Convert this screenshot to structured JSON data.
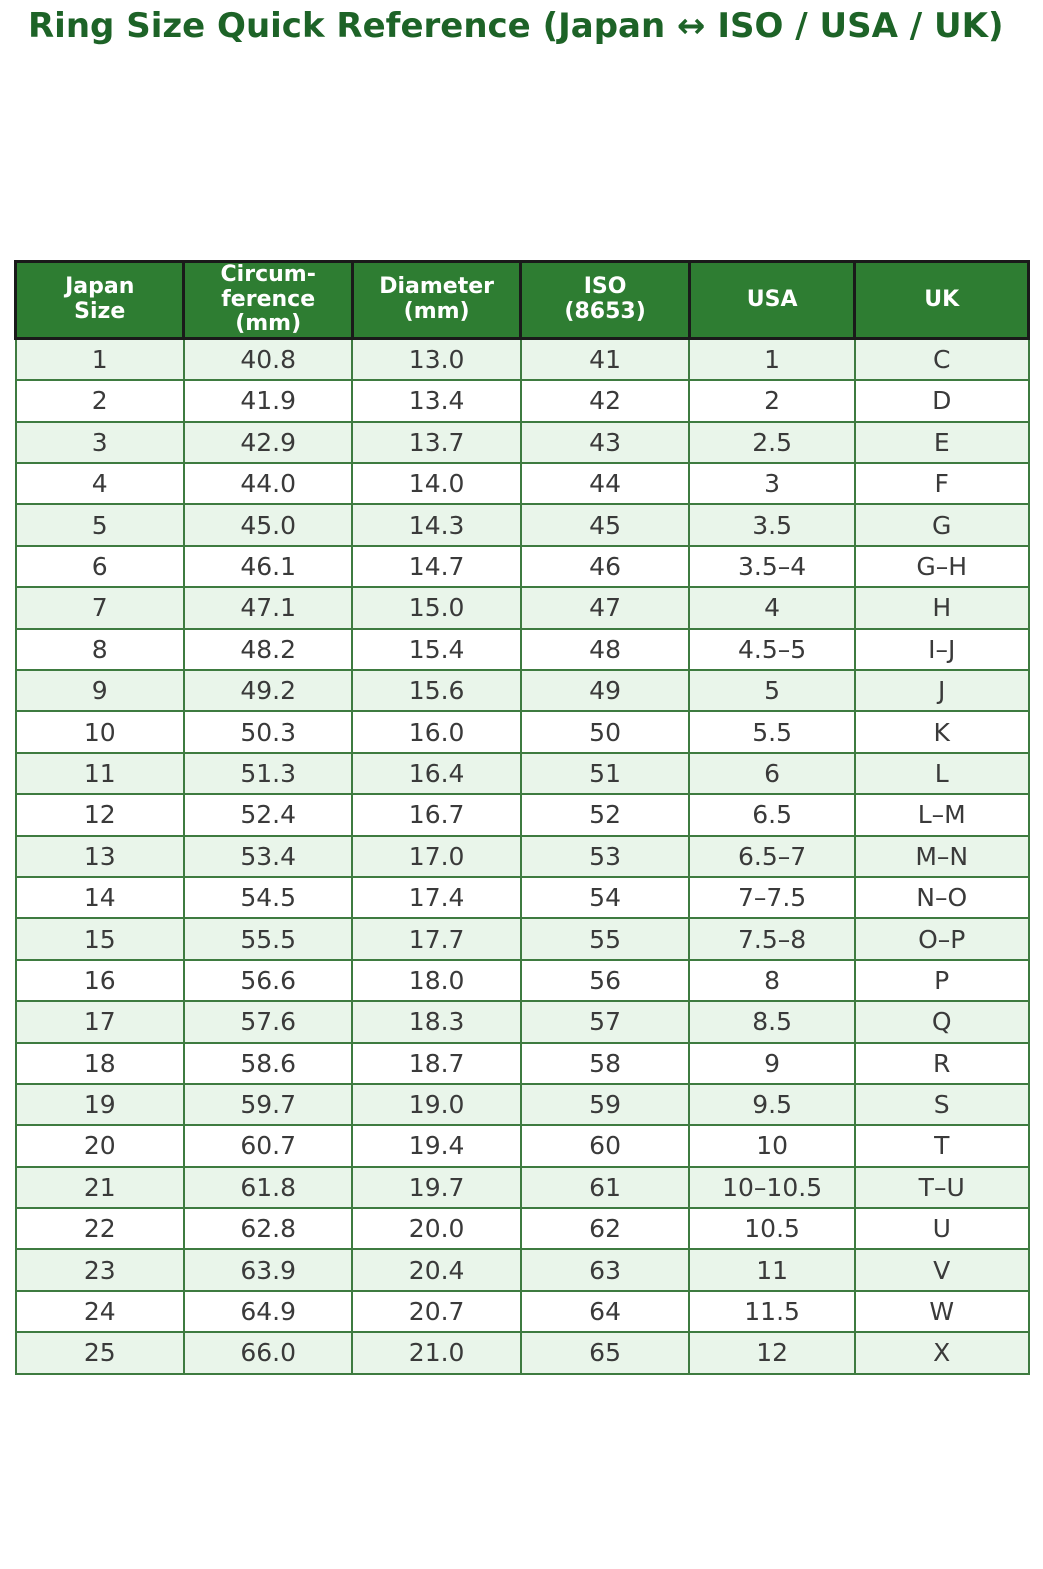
{
  "chart_data": {
    "type": "table",
    "title": "Ring Size Quick Reference (Japan ↔ ISO / USA / UK)",
    "columns": [
      "Japan\nSize",
      "Circum-\nference\n(mm)",
      "Diameter\n(mm)",
      "ISO\n(8653)",
      "USA",
      "UK"
    ],
    "rows": [
      [
        "1",
        "40.8",
        "13.0",
        "41",
        "1",
        "C"
      ],
      [
        "2",
        "41.9",
        "13.4",
        "42",
        "2",
        "D"
      ],
      [
        "3",
        "42.9",
        "13.7",
        "43",
        "2.5",
        "E"
      ],
      [
        "4",
        "44.0",
        "14.0",
        "44",
        "3",
        "F"
      ],
      [
        "5",
        "45.0",
        "14.3",
        "45",
        "3.5",
        "G"
      ],
      [
        "6",
        "46.1",
        "14.7",
        "46",
        "3.5–4",
        "G–H"
      ],
      [
        "7",
        "47.1",
        "15.0",
        "47",
        "4",
        "H"
      ],
      [
        "8",
        "48.2",
        "15.4",
        "48",
        "4.5–5",
        "I–J"
      ],
      [
        "9",
        "49.2",
        "15.6",
        "49",
        "5",
        "J"
      ],
      [
        "10",
        "50.3",
        "16.0",
        "50",
        "5.5",
        "K"
      ],
      [
        "11",
        "51.3",
        "16.4",
        "51",
        "6",
        "L"
      ],
      [
        "12",
        "52.4",
        "16.7",
        "52",
        "6.5",
        "L–M"
      ],
      [
        "13",
        "53.4",
        "17.0",
        "53",
        "6.5–7",
        "M–N"
      ],
      [
        "14",
        "54.5",
        "17.4",
        "54",
        "7–7.5",
        "N–O"
      ],
      [
        "15",
        "55.5",
        "17.7",
        "55",
        "7.5–8",
        "O–P"
      ],
      [
        "16",
        "56.6",
        "18.0",
        "56",
        "8",
        "P"
      ],
      [
        "17",
        "57.6",
        "18.3",
        "57",
        "8.5",
        "Q"
      ],
      [
        "18",
        "58.6",
        "18.7",
        "58",
        "9",
        "R"
      ],
      [
        "19",
        "59.7",
        "19.0",
        "59",
        "9.5",
        "S"
      ],
      [
        "20",
        "60.7",
        "19.4",
        "60",
        "10",
        "T"
      ],
      [
        "21",
        "61.8",
        "19.7",
        "61",
        "10–10.5",
        "T–U"
      ],
      [
        "22",
        "62.8",
        "20.0",
        "62",
        "10.5",
        "U"
      ],
      [
        "23",
        "63.9",
        "20.4",
        "63",
        "11",
        "V"
      ],
      [
        "24",
        "64.9",
        "20.7",
        "64",
        "11.5",
        "W"
      ],
      [
        "25",
        "66.0",
        "21.0",
        "65",
        "12",
        "X"
      ]
    ],
    "layout": {
      "zebra_striping": true,
      "first_body_row_shaded": true,
      "header_position": "top"
    }
  },
  "colors": {
    "title_text": "#1d6327",
    "header_bg": "#2e7d32",
    "header_text": "#ffffff",
    "header_border": "#1a1a1a",
    "row_shaded_bg": "#e9f5ea",
    "row_plain_bg": "#ffffff",
    "grid_line": "#3e7b40",
    "cell_text": "#3a3a3a",
    "page_bg": "#ffffff"
  }
}
